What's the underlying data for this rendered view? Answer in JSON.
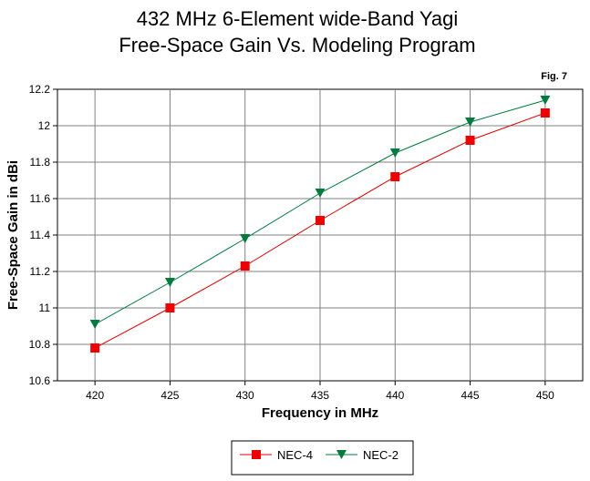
{
  "chart_data": {
    "type": "line",
    "title_line1": "432 MHz 6-Element wide-Band Yagi",
    "title_line2": "Free-Space Gain Vs. Modeling Program",
    "figure_label": "Fig. 7",
    "xlabel": "Frequency in MHz",
    "ylabel": "Free-Space Gain in dBi",
    "x": [
      420,
      425,
      430,
      435,
      440,
      445,
      450
    ],
    "x_tick_labels": [
      "420",
      "425",
      "430",
      "435",
      "440",
      "445",
      "450"
    ],
    "xlim": [
      417.5,
      452.5
    ],
    "ylim": [
      10.6,
      12.2
    ],
    "y_ticks": [
      10.6,
      10.8,
      11,
      11.2,
      11.4,
      11.6,
      11.8,
      12,
      12.2
    ],
    "y_tick_labels": [
      "10.6",
      "10.8",
      "11",
      "11.2",
      "11.4",
      "11.6",
      "11.8",
      "12",
      "12.2"
    ],
    "grid": true,
    "legend_position": "bottom-center",
    "series": [
      {
        "name": "NEC-4",
        "color": "#dd0000",
        "marker": "square",
        "values": [
          10.78,
          11.0,
          11.23,
          11.48,
          11.72,
          11.92,
          12.07
        ]
      },
      {
        "name": "NEC-2",
        "color": "#007a3d",
        "marker": "triangle-down",
        "values": [
          10.91,
          11.14,
          11.38,
          11.63,
          11.85,
          12.02,
          12.14
        ]
      }
    ]
  }
}
